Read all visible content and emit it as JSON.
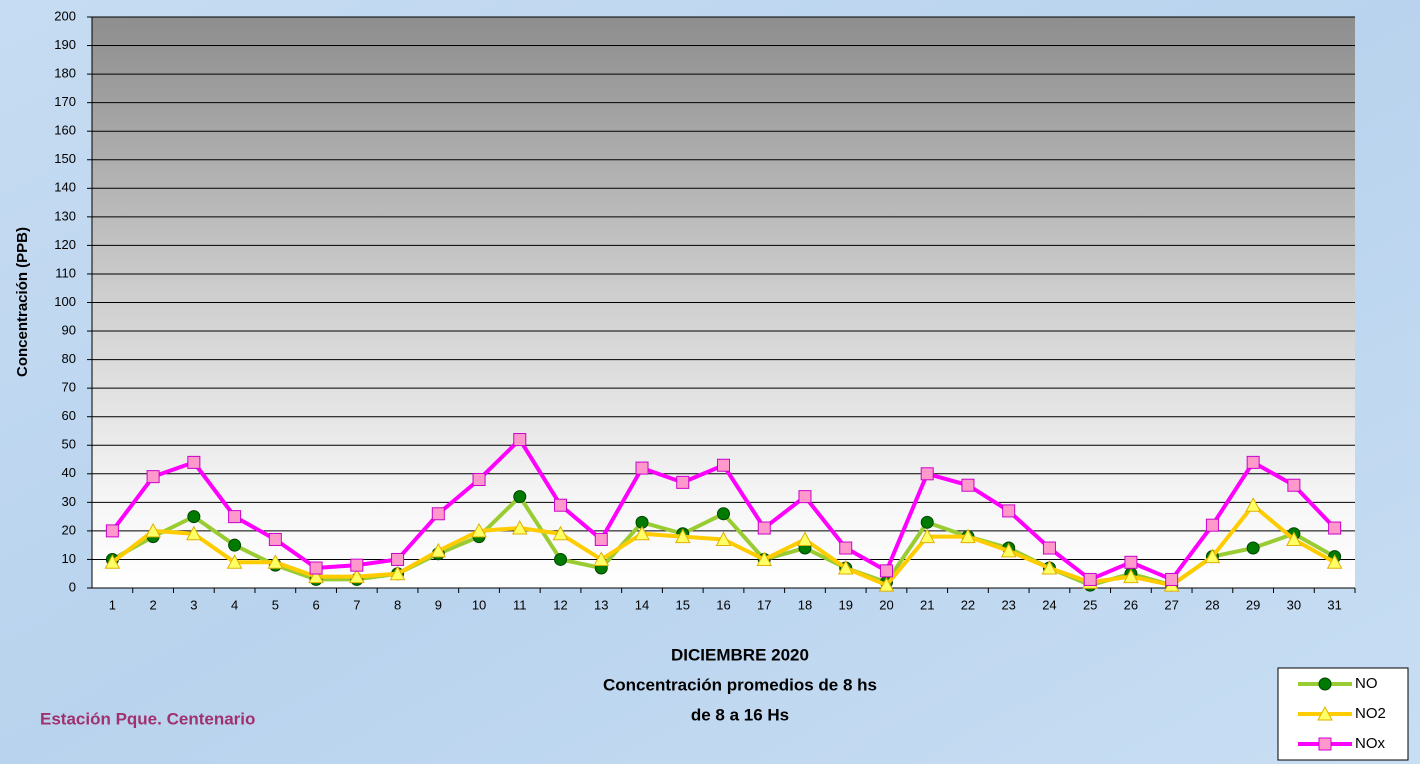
{
  "chart_data": {
    "type": "line",
    "y_label": "Concentración (PPB)",
    "x_title": [
      "DICIEMBRE 2020",
      "Concentración promedios de 8 hs",
      "de 8 a 16 Hs"
    ],
    "station": "Estación Pque. Centenario",
    "categories": [
      1,
      2,
      3,
      4,
      5,
      6,
      7,
      8,
      9,
      10,
      11,
      12,
      13,
      14,
      15,
      16,
      17,
      18,
      19,
      20,
      21,
      22,
      23,
      24,
      25,
      26,
      27,
      28,
      29,
      30,
      31
    ],
    "ylim": [
      0,
      200
    ],
    "yticks": [
      0,
      10,
      20,
      30,
      40,
      50,
      60,
      70,
      80,
      90,
      100,
      110,
      120,
      130,
      140,
      150,
      160,
      170,
      180,
      190,
      200
    ],
    "grid": true,
    "legend": "bottom-right",
    "series": [
      {
        "name": "NO",
        "color": "#99cc33",
        "marker": "circle",
        "marker_color": "#007a00",
        "values": [
          10,
          18,
          25,
          15,
          8,
          3,
          3,
          5,
          12,
          18,
          32,
          10,
          7,
          23,
          19,
          26,
          10,
          14,
          7,
          2,
          23,
          18,
          14,
          7,
          1,
          5,
          1,
          11,
          14,
          19,
          11
        ]
      },
      {
        "name": "NO2",
        "color": "#ffcc00",
        "marker": "triangle",
        "marker_color": "#ffff66",
        "values": [
          9,
          20,
          19,
          9,
          9,
          4,
          4,
          5,
          13,
          20,
          21,
          19,
          10,
          19,
          18,
          17,
          10,
          17,
          7,
          1,
          18,
          18,
          13,
          7,
          2,
          4,
          1,
          11,
          29,
          17,
          9
        ]
      },
      {
        "name": "NOx",
        "color": "#ff00ff",
        "marker": "square",
        "marker_color": "#ff99cc",
        "values": [
          20,
          39,
          44,
          25,
          17,
          7,
          8,
          10,
          26,
          38,
          52,
          29,
          17,
          42,
          37,
          43,
          21,
          32,
          14,
          6,
          40,
          36,
          27,
          14,
          3,
          9,
          3,
          22,
          44,
          36,
          21
        ]
      }
    ]
  }
}
